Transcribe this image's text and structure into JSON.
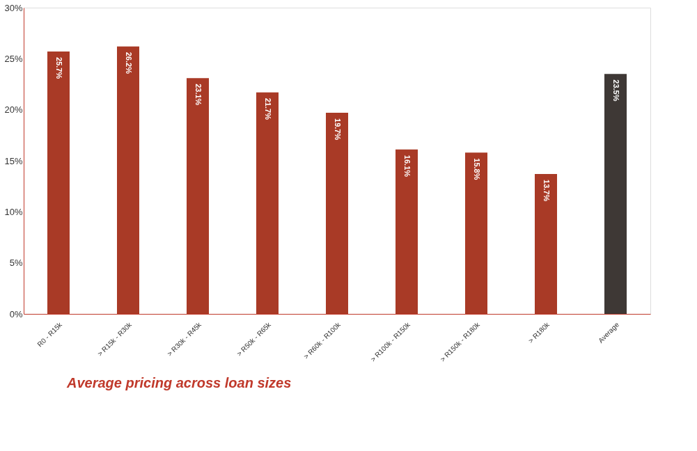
{
  "chart_data": {
    "type": "bar",
    "title": "Average pricing across loan sizes",
    "categories": [
      "R0 - R15k",
      "> R15k - R30k",
      "> R30k - R45k",
      "> R50k - R65k",
      "> R60k - R100k",
      "> R100k - R150k",
      "> R150k - R180k",
      "> R180k",
      "Average"
    ],
    "values": [
      25.7,
      26.2,
      23.1,
      21.7,
      19.7,
      16.1,
      15.8,
      13.7,
      23.5
    ],
    "colors": [
      "#a93a26",
      "#a93a26",
      "#a93a26",
      "#a93a26",
      "#a93a26",
      "#a93a26",
      "#a93a26",
      "#a93a26",
      "#3e3835"
    ],
    "value_labels": [
      "25.7%",
      "26.2%",
      "23.1%",
      "21.7%",
      "19.7%",
      "16.1%",
      "15.8%",
      "13.7%",
      "23.5%"
    ],
    "ylim": [
      0,
      30
    ],
    "yticks": [
      {
        "value": 0,
        "label": "0%"
      },
      {
        "value": 5,
        "label": "5%"
      },
      {
        "value": 10,
        "label": "10%"
      },
      {
        "value": 15,
        "label": "15%"
      },
      {
        "value": 20,
        "label": "20%"
      },
      {
        "value": 25,
        "label": "25%"
      },
      {
        "value": 30,
        "label": "30%"
      }
    ],
    "grid": false
  }
}
